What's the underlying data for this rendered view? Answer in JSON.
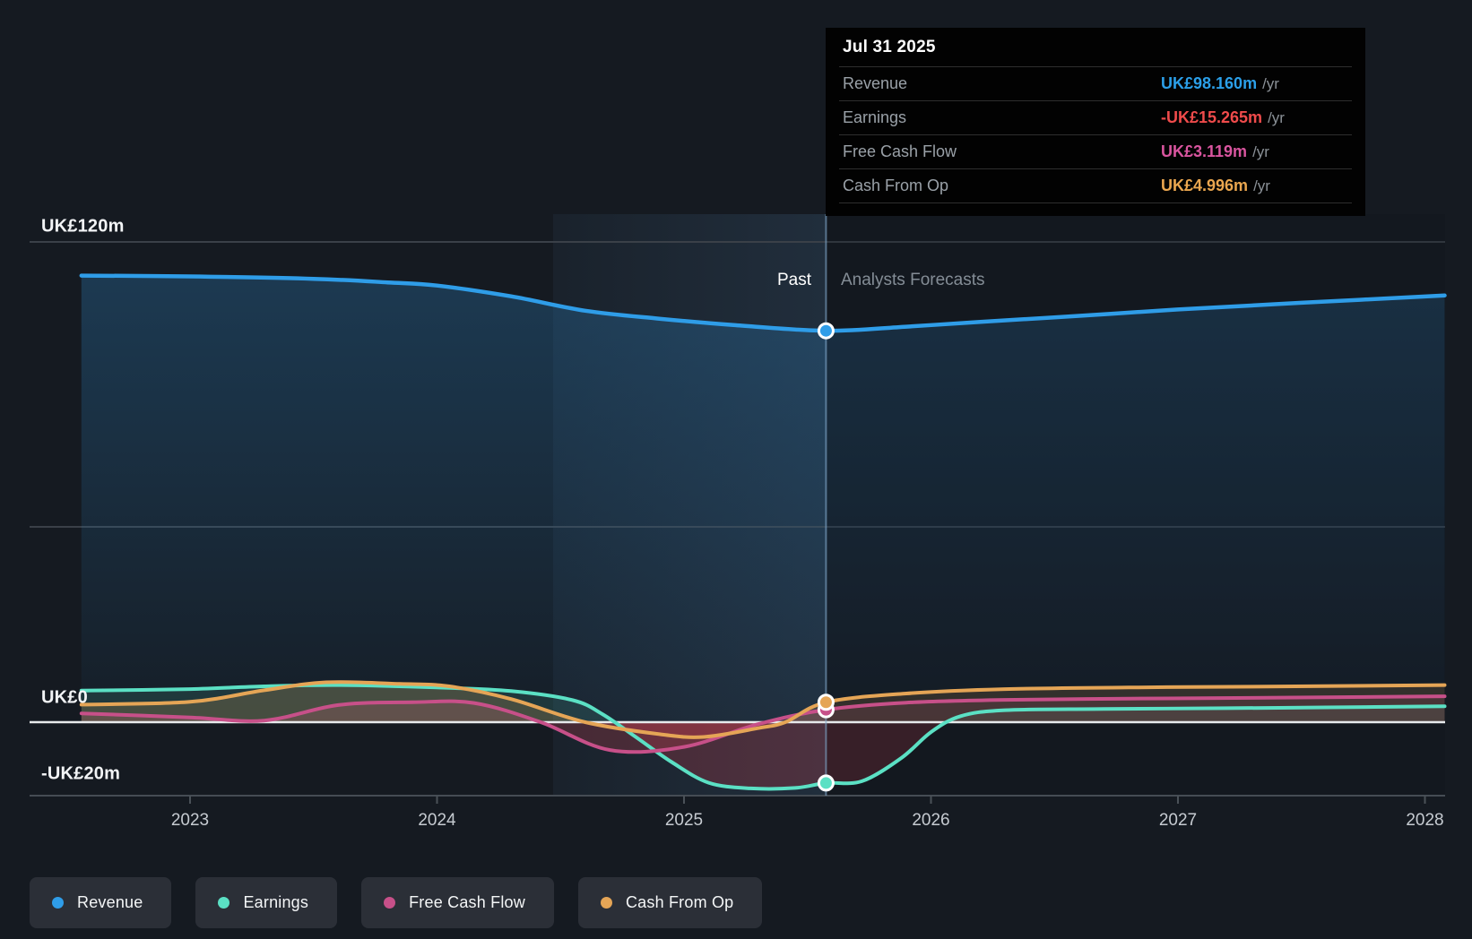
{
  "yaxis": {
    "labels": [
      "UK£120m",
      "UK£0",
      "-UK£20m"
    ],
    "values": [
      120,
      0,
      -20
    ]
  },
  "xaxis": {
    "years": [
      "2023",
      "2024",
      "2025",
      "2026",
      "2027",
      "2028"
    ]
  },
  "zones": {
    "past": "Past",
    "forecast": "Analysts Forecasts"
  },
  "tooltip": {
    "title": "Jul 31 2025",
    "rows": [
      {
        "label": "Revenue",
        "value": "UK£98.160m",
        "suffix": "/yr",
        "color": "#2b9fe8"
      },
      {
        "label": "Earnings",
        "value": "-UK£15.265m",
        "suffix": "/yr",
        "color": "#ef4b4b"
      },
      {
        "label": "Free Cash Flow",
        "value": "UK£3.119m",
        "suffix": "/yr",
        "color": "#d9559f"
      },
      {
        "label": "Cash From Op",
        "value": "UK£4.996m",
        "suffix": "/yr",
        "color": "#eaa64f"
      }
    ]
  },
  "legend": {
    "items": [
      {
        "label": "Revenue",
        "color": "#2f9de8"
      },
      {
        "label": "Earnings",
        "color": "#5be0c4"
      },
      {
        "label": "Free Cash Flow",
        "color": "#c75089"
      },
      {
        "label": "Cash From Op",
        "color": "#e5a556"
      }
    ]
  },
  "chart_data": {
    "type": "area",
    "title": "Past and forecast financials (Revenue, Earnings, Free Cash Flow, Cash From Op)",
    "y_unit": "UK£ millions",
    "x_range": [
      2022.56,
      2028.08
    ],
    "y_range": [
      -20,
      120
    ],
    "y_gridline_values": [
      120,
      0,
      -20
    ],
    "divider": {
      "x": 2025.575,
      "date": "Jul 31 2025"
    },
    "legend_position": "bottom-left",
    "series": [
      {
        "name": "Revenue",
        "color": "#2f9de8",
        "value_at_divider": 98.16,
        "points": [
          [
            2022.56,
            112.0
          ],
          [
            2023.0,
            111.8
          ],
          [
            2023.5,
            111.2
          ],
          [
            2023.8,
            110.3
          ],
          [
            2024.0,
            109.5
          ],
          [
            2024.3,
            106.8
          ],
          [
            2024.6,
            103.2
          ],
          [
            2024.9,
            101.2
          ],
          [
            2025.2,
            99.6
          ],
          [
            2025.575,
            98.16
          ],
          [
            2025.9,
            99.2
          ],
          [
            2026.2,
            100.4
          ],
          [
            2026.6,
            101.9
          ],
          [
            2027.0,
            103.5
          ],
          [
            2027.5,
            105.2
          ],
          [
            2028.08,
            107.0
          ]
        ]
      },
      {
        "name": "Earnings",
        "color": "#5be0c4",
        "value_at_divider": -15.265,
        "points": [
          [
            2022.56,
            7.9
          ],
          [
            2023.0,
            8.3
          ],
          [
            2023.3,
            9.0
          ],
          [
            2023.6,
            9.3
          ],
          [
            2024.0,
            8.7
          ],
          [
            2024.3,
            7.8
          ],
          [
            2024.55,
            5.5
          ],
          [
            2024.67,
            2.0
          ],
          [
            2024.8,
            -3.5
          ],
          [
            2024.95,
            -10.0
          ],
          [
            2025.1,
            -15.2
          ],
          [
            2025.27,
            -16.6
          ],
          [
            2025.45,
            -16.5
          ],
          [
            2025.575,
            -15.265
          ],
          [
            2025.72,
            -14.8
          ],
          [
            2025.88,
            -9.0
          ],
          [
            2026.0,
            -2.5
          ],
          [
            2026.12,
            1.5
          ],
          [
            2026.3,
            3.0
          ],
          [
            2026.7,
            3.3
          ],
          [
            2027.2,
            3.5
          ],
          [
            2027.6,
            3.7
          ],
          [
            2028.08,
            4.0
          ]
        ]
      },
      {
        "name": "Free Cash Flow",
        "color": "#c75089",
        "value_at_divider": 3.119,
        "points": [
          [
            2022.56,
            2.2
          ],
          [
            2023.0,
            1.2
          ],
          [
            2023.3,
            0.4
          ],
          [
            2023.6,
            4.3
          ],
          [
            2023.9,
            5.0
          ],
          [
            2024.15,
            4.8
          ],
          [
            2024.42,
            0.0
          ],
          [
            2024.7,
            -7.0
          ],
          [
            2025.0,
            -6.2
          ],
          [
            2025.3,
            -0.5
          ],
          [
            2025.575,
            3.119
          ],
          [
            2025.9,
            4.9
          ],
          [
            2026.3,
            5.6
          ],
          [
            2026.8,
            5.9
          ],
          [
            2027.3,
            6.1
          ],
          [
            2028.08,
            6.5
          ]
        ]
      },
      {
        "name": "Cash From Op",
        "color": "#e5a556",
        "value_at_divider": 4.996,
        "points": [
          [
            2022.56,
            4.4
          ],
          [
            2023.0,
            5.1
          ],
          [
            2023.3,
            8.0
          ],
          [
            2023.55,
            10.0
          ],
          [
            2023.85,
            9.6
          ],
          [
            2024.05,
            9.0
          ],
          [
            2024.3,
            5.8
          ],
          [
            2024.6,
            0.0
          ],
          [
            2024.9,
            -3.0
          ],
          [
            2025.08,
            -3.7
          ],
          [
            2025.3,
            -1.5
          ],
          [
            2025.41,
            0.0
          ],
          [
            2025.575,
            4.996
          ],
          [
            2025.9,
            7.2
          ],
          [
            2026.3,
            8.3
          ],
          [
            2026.8,
            8.7
          ],
          [
            2027.3,
            8.9
          ],
          [
            2028.08,
            9.3
          ]
        ]
      }
    ],
    "colors": {
      "background": "#151a21",
      "negative_area": "rgba(190,60,75,0.28)",
      "zero_line": "#e7eaec",
      "gridline": "#3a4048",
      "divider_line": "rgba(130,170,205,0.6)",
      "highlight_band": "rgba(100,160,215,0.12)"
    }
  }
}
